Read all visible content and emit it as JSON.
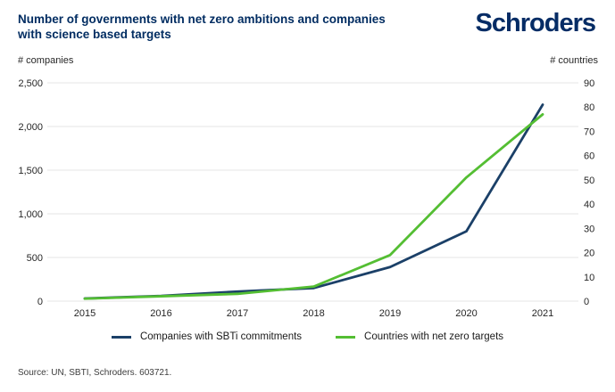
{
  "header": {
    "title_line1": "Number of governments with net zero ambitions and companies",
    "title_line2": "with science based targets",
    "logo_text": "Schroders"
  },
  "chart_data": {
    "type": "line",
    "title": "Number of governments with net zero ambitions and companies with science based targets",
    "categories": [
      "2015",
      "2016",
      "2017",
      "2018",
      "2019",
      "2020",
      "2021"
    ],
    "series": [
      {
        "name": "Companies with SBTi commitments",
        "axis": "left",
        "color": "#1b4068",
        "values": [
          30,
          60,
          110,
          150,
          390,
          800,
          2250
        ]
      },
      {
        "name": "Countries with net zero targets",
        "axis": "right",
        "color": "#54be33",
        "values": [
          1,
          2,
          3,
          6,
          19,
          51,
          77
        ]
      }
    ],
    "left_axis": {
      "label": "# companies",
      "min": 0,
      "max": 2500,
      "tick_values": [
        0,
        500,
        1000,
        1500,
        2000,
        2500
      ],
      "ticks": [
        "0",
        "500",
        "1,000",
        "1,500",
        "2,000",
        "2,500"
      ]
    },
    "right_axis": {
      "label": "# countries",
      "min": 0,
      "max": 90,
      "tick_values": [
        0,
        10,
        20,
        30,
        40,
        50,
        60,
        70,
        80,
        90
      ],
      "ticks": [
        "0",
        "10",
        "20",
        "30",
        "40",
        "50",
        "60",
        "70",
        "80",
        "90"
      ]
    },
    "grid": "horizontal-only",
    "legend_position": "bottom"
  },
  "footer": {
    "source_text": "Source: UN, SBTI, Schroders. 603721."
  },
  "colors": {
    "brand_navy": "#022d62",
    "line_blue": "#1b4068",
    "line_green": "#54be33",
    "gridline": "#e6e6e6",
    "tick_text": "#262626",
    "footer_text": "#3d3d3d",
    "background": "#ffffff"
  }
}
